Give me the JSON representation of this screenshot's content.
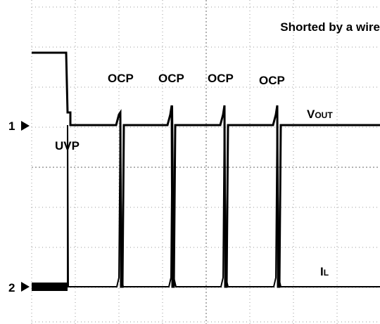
{
  "annotation": "Shorted by a wire",
  "ocp_labels": [
    "OCP",
    "OCP",
    "OCP",
    "OCP"
  ],
  "vout": {
    "main": "V",
    "sub": "OUT"
  },
  "uvp": "UVP",
  "il": {
    "main": "I",
    "sub": "L"
  },
  "channels": [
    "1",
    "2"
  ]
}
